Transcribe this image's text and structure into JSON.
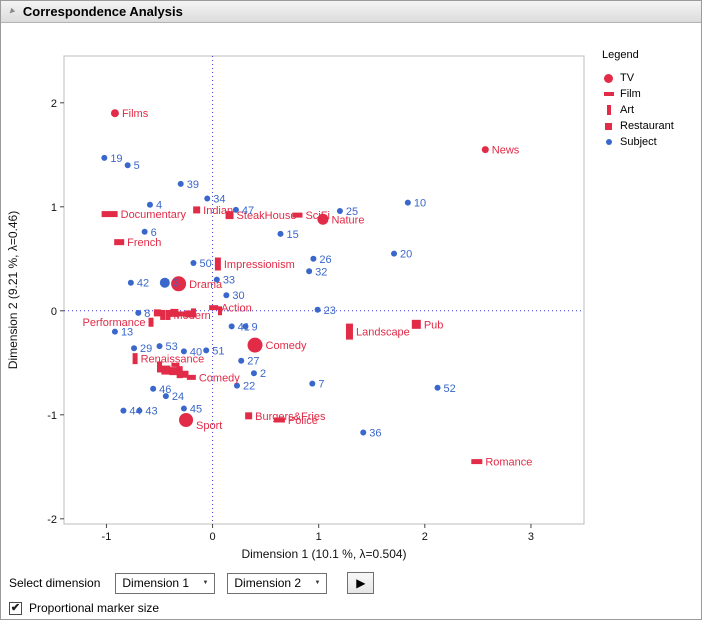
{
  "window": {
    "title": "Correspondence Analysis"
  },
  "icons": {
    "disclosure_triangle": "▼",
    "dropdown_chevron": "▼",
    "apply_arrow": "▶",
    "check": "✔"
  },
  "legend": {
    "title": "Legend",
    "items": [
      {
        "label": "TV",
        "marker": "circle",
        "color": "#e12b47"
      },
      {
        "label": "Film",
        "marker": "hbar",
        "color": "#e12b47"
      },
      {
        "label": "Art",
        "marker": "vbar",
        "color": "#e12b47"
      },
      {
        "label": "Restaurant",
        "marker": "square",
        "color": "#e12b47"
      },
      {
        "label": "Subject",
        "marker": "dot",
        "color": "#3a67cb"
      }
    ]
  },
  "controls": {
    "select_label": "Select dimension",
    "dim1_value": "Dimension 1",
    "dim2_value": "Dimension 2",
    "checkbox_label": "Proportional marker size",
    "checkbox_checked": true
  },
  "chart_data": {
    "type": "scatter",
    "title": "Correspondence Analysis",
    "xlabel": "Dimension 1 (10.1 %, λ=0.504)",
    "ylabel": "Dimension 2  (9.21 %, λ=0.46)",
    "xlim": [
      -1.4,
      3.5
    ],
    "ylim": [
      -2.05,
      2.45
    ],
    "x_ticks": [
      -1,
      0,
      1,
      2,
      3
    ],
    "y_ticks": [
      -2,
      -1,
      0,
      1,
      2
    ],
    "zero_lines": true,
    "grid": false,
    "legend_position": "right",
    "colors": {
      "category": "#e12b47",
      "subject": "#3a67cb",
      "zero_line": "#3b3bd1",
      "frame": "#bdbdbd"
    },
    "series": [
      {
        "name": "TV",
        "marker": "circle",
        "points": [
          {
            "x": -0.92,
            "y": 1.9,
            "label": "Films",
            "r": 4
          },
          {
            "x": 2.57,
            "y": 1.55,
            "label": "News",
            "r": 3.5
          },
          {
            "x": 1.04,
            "y": 0.88,
            "label": "Nature",
            "r": 5.5
          },
          {
            "x": -0.32,
            "y": 0.26,
            "label": "Drama",
            "r": 7.5
          },
          {
            "x": 0.4,
            "y": -0.33,
            "label": "Comedy",
            "r": 7.5
          },
          {
            "x": -0.25,
            "y": -1.05,
            "label": "Sport",
            "r": 7,
            "ldy": 9
          }
        ]
      },
      {
        "name": "Film",
        "marker": "hbar",
        "points": [
          {
            "x": -0.97,
            "y": 0.93,
            "label": "Documentary",
            "w": 16,
            "h": 6
          },
          {
            "x": -0.88,
            "y": 0.66,
            "label": "French",
            "w": 10,
            "h": 6
          },
          {
            "x": 0.8,
            "y": 0.92,
            "label": "SciFi",
            "w": 10,
            "h": 5
          },
          {
            "x": 0.01,
            "y": 0.03,
            "label": "Action",
            "w": 9,
            "h": 5
          },
          {
            "x": 0.63,
            "y": -1.05,
            "label": "Police",
            "w": 11,
            "h": 5
          },
          {
            "x": 2.49,
            "y": -1.45,
            "label": "Romance",
            "w": 11,
            "h": 5
          },
          {
            "x": -0.2,
            "y": -0.64,
            "label": "Comedy",
            "w": 9,
            "h": 5
          },
          {
            "x": -0.3,
            "y": -0.03,
            "label": "",
            "w": 9,
            "h": 5
          },
          {
            "x": -0.35,
            "y": -0.52,
            "label": "",
            "w": 8,
            "h": 4
          }
        ]
      },
      {
        "name": "Art",
        "marker": "vbar",
        "points": [
          {
            "x": 0.05,
            "y": 0.45,
            "label": "Impressionism",
            "w": 6,
            "h": 13
          },
          {
            "x": 1.29,
            "y": -0.2,
            "label": "Landscape",
            "w": 7,
            "h": 16
          },
          {
            "x": -0.73,
            "y": -0.46,
            "label": "Renaissance",
            "w": 5,
            "h": 11
          },
          {
            "x": -0.42,
            "y": -0.04,
            "label": "Modern",
            "w": 5,
            "h": 10
          },
          {
            "x": -0.58,
            "y": -0.11,
            "label": "Performance",
            "w": 5,
            "h": 9,
            "side": "left"
          },
          {
            "x": -0.47,
            "y": -0.04,
            "label": "",
            "w": 5,
            "h": 10
          },
          {
            "x": -0.18,
            "y": -0.02,
            "label": "",
            "w": 5,
            "h": 9
          },
          {
            "x": -0.5,
            "y": -0.54,
            "label": "",
            "w": 5,
            "h": 11
          },
          {
            "x": -0.31,
            "y": -0.59,
            "label": "",
            "w": 6,
            "h": 12
          },
          {
            "x": 0.07,
            "y": 0.0,
            "label": "",
            "w": 4,
            "h": 9
          }
        ]
      },
      {
        "name": "Restaurant",
        "marker": "square",
        "points": [
          {
            "x": 0.16,
            "y": 0.92,
            "label": "SteakHouse",
            "s": 8
          },
          {
            "x": -0.15,
            "y": 0.97,
            "label": "Indian",
            "s": 7
          },
          {
            "x": 1.92,
            "y": -0.13,
            "label": "Pub",
            "s": 9
          },
          {
            "x": 0.34,
            "y": -1.01,
            "label": "Burgers&Fries",
            "s": 7
          },
          {
            "x": -0.52,
            "y": -0.02,
            "label": "",
            "s": 7
          },
          {
            "x": -0.36,
            "y": -0.02,
            "label": "",
            "s": 8
          },
          {
            "x": -0.23,
            "y": -0.03,
            "label": "",
            "s": 7
          },
          {
            "x": -0.44,
            "y": -0.57,
            "label": "",
            "s": 9
          },
          {
            "x": -0.37,
            "y": -0.58,
            "label": "",
            "s": 8
          },
          {
            "x": -0.26,
            "y": -0.61,
            "label": "",
            "s": 7
          }
        ]
      },
      {
        "name": "Subject",
        "marker": "dot",
        "points": [
          {
            "x": -1.02,
            "y": 1.47,
            "label": "19"
          },
          {
            "x": -0.8,
            "y": 1.4,
            "label": "5"
          },
          {
            "x": -0.3,
            "y": 1.22,
            "label": "39"
          },
          {
            "x": -0.59,
            "y": 1.02,
            "label": "4"
          },
          {
            "x": -0.05,
            "y": 1.08,
            "label": "34"
          },
          {
            "x": 0.22,
            "y": 0.97,
            "label": "47"
          },
          {
            "x": 1.2,
            "y": 0.96,
            "label": "25"
          },
          {
            "x": 1.84,
            "y": 1.04,
            "label": "10"
          },
          {
            "x": -0.64,
            "y": 0.76,
            "label": "6"
          },
          {
            "x": 0.64,
            "y": 0.74,
            "label": "15"
          },
          {
            "x": 0.95,
            "y": 0.5,
            "label": "26"
          },
          {
            "x": 1.71,
            "y": 0.55,
            "label": "20"
          },
          {
            "x": 0.91,
            "y": 0.38,
            "label": "32"
          },
          {
            "x": -0.18,
            "y": 0.46,
            "label": "50"
          },
          {
            "x": -0.77,
            "y": 0.27,
            "label": "42"
          },
          {
            "x": -0.45,
            "y": 0.27,
            "label": "3",
            "r": 5
          },
          {
            "x": 0.04,
            "y": 0.3,
            "label": "33"
          },
          {
            "x": 0.13,
            "y": 0.15,
            "label": "30"
          },
          {
            "x": 0.99,
            "y": 0.01,
            "label": "23"
          },
          {
            "x": -0.7,
            "y": -0.02,
            "label": "8"
          },
          {
            "x": -0.92,
            "y": -0.2,
            "label": "13"
          },
          {
            "x": -0.74,
            "y": -0.36,
            "label": "29"
          },
          {
            "x": -0.5,
            "y": -0.34,
            "label": "53"
          },
          {
            "x": -0.27,
            "y": -0.39,
            "label": "40"
          },
          {
            "x": -0.06,
            "y": -0.38,
            "label": "51"
          },
          {
            "x": 0.18,
            "y": -0.15,
            "label": "41"
          },
          {
            "x": 0.31,
            "y": -0.15,
            "label": "9"
          },
          {
            "x": 0.27,
            "y": -0.48,
            "label": "27"
          },
          {
            "x": 0.39,
            "y": -0.6,
            "label": "2"
          },
          {
            "x": 0.23,
            "y": -0.72,
            "label": "22"
          },
          {
            "x": 0.94,
            "y": -0.7,
            "label": "7"
          },
          {
            "x": 2.12,
            "y": -0.74,
            "label": "52"
          },
          {
            "x": -0.56,
            "y": -0.75,
            "label": "46"
          },
          {
            "x": -0.44,
            "y": -0.82,
            "label": "24"
          },
          {
            "x": -0.84,
            "y": -0.96,
            "label": "44"
          },
          {
            "x": -0.69,
            "y": -0.96,
            "label": "43"
          },
          {
            "x": -0.27,
            "y": -0.94,
            "label": "45"
          },
          {
            "x": 1.42,
            "y": -1.17,
            "label": "36"
          }
        ]
      }
    ]
  }
}
